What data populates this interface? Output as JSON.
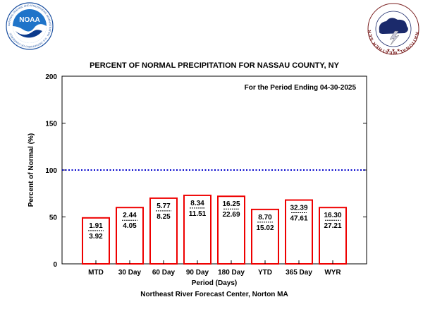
{
  "logos": {
    "noaa": {
      "wordmark": "NOAA",
      "ring_text": "NATIONAL OCEANIC AND ATMOSPHERIC ADMINISTRATION · U.S. DEPARTMENT OF COMMERCE"
    },
    "nws": {
      "ring_text": "NATIONAL WEATHER SERVICE"
    }
  },
  "chart_data": {
    "type": "bar",
    "title": "PERCENT OF NORMAL PRECIPITATION FOR NASSAU COUNTY, NY",
    "annotation": "For the Period Ending 04-30-2025",
    "xlabel": "Period (Days)",
    "ylabel": "Percent of Normal (%)",
    "footer": "Northeast River Forecast Center, Norton MA",
    "categories": [
      "MTD",
      "30 Day",
      "60 Day",
      "90 Day",
      "180 Day",
      "YTD",
      "365 Day",
      "WYR"
    ],
    "values": [
      49,
      60,
      70,
      73,
      72,
      58,
      68,
      60
    ],
    "observed": [
      "1.91",
      "2.44",
      "5.77",
      "8.34",
      "16.25",
      "8.70",
      "32.39",
      "16.30"
    ],
    "normal": [
      "3.92",
      "4.05",
      "8.25",
      "11.51",
      "22.69",
      "15.02",
      "47.61",
      "27.21"
    ],
    "ylim": [
      0,
      200
    ],
    "yticks": [
      0,
      50,
      100,
      150,
      200
    ],
    "reference_line": 100,
    "grid": false,
    "colors": {
      "bar": "#ee0000",
      "reference": "#0000cc",
      "axis": "#000000"
    }
  }
}
